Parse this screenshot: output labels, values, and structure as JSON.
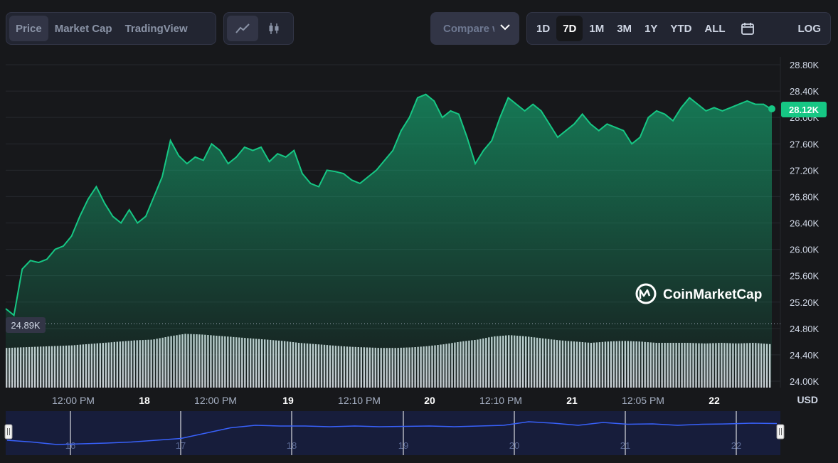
{
  "toolbar": {
    "tabs": [
      "Price",
      "Market Cap",
      "TradingView"
    ],
    "active_tab": "Price",
    "chart_types": [
      "line-chart-icon",
      "candlestick-icon"
    ],
    "compare_label": "Compare with",
    "timeframes": [
      "1D",
      "7D",
      "1M",
      "3M",
      "1Y",
      "YTD",
      "ALL"
    ],
    "active_timeframe": "7D",
    "calendar_icon": "calendar-icon",
    "log_label": "LOG"
  },
  "watermark": "CoinMarketCap",
  "currency": "USD",
  "colors": {
    "line": "#16c784",
    "badge": "#16c784",
    "background": "#17181b",
    "navigator_line": "#3861fb"
  },
  "chart_data": {
    "type": "area",
    "title": "",
    "ylabel": "",
    "y_ticks": [
      "28.80K",
      "28.40K",
      "28.00K",
      "27.60K",
      "27.20K",
      "26.80K",
      "26.40K",
      "26.00K",
      "25.60K",
      "25.20K",
      "24.80K",
      "24.40K",
      "24.00K"
    ],
    "ylim": [
      24000,
      28800
    ],
    "x_ticks": [
      "12:00 PM",
      "18",
      "12:00 PM",
      "19",
      "12:10 PM",
      "20",
      "12:10 PM",
      "21",
      "12:05 PM",
      "22"
    ],
    "current_price_label": "28.12K",
    "current_price": 28120,
    "start_price_label": "24.89K",
    "start_price": 24890,
    "price_series": [
      [
        0,
        25100
      ],
      [
        0.5,
        25000
      ],
      [
        1,
        25700
      ],
      [
        1.5,
        25830
      ],
      [
        2,
        25800
      ],
      [
        2.5,
        25850
      ],
      [
        3,
        26000
      ],
      [
        3.5,
        26050
      ],
      [
        4,
        26200
      ],
      [
        4.5,
        26500
      ],
      [
        5,
        26760
      ],
      [
        5.5,
        26950
      ],
      [
        6,
        26700
      ],
      [
        6.5,
        26500
      ],
      [
        7,
        26400
      ],
      [
        7.5,
        26600
      ],
      [
        8,
        26400
      ],
      [
        8.5,
        26500
      ],
      [
        9,
        26800
      ],
      [
        9.5,
        27100
      ],
      [
        10,
        27650
      ],
      [
        10.5,
        27420
      ],
      [
        11,
        27300
      ],
      [
        11.5,
        27400
      ],
      [
        12,
        27350
      ],
      [
        12.5,
        27600
      ],
      [
        13,
        27500
      ],
      [
        13.5,
        27300
      ],
      [
        14,
        27400
      ],
      [
        14.5,
        27550
      ],
      [
        15,
        27500
      ],
      [
        15.5,
        27550
      ],
      [
        16,
        27330
      ],
      [
        16.5,
        27450
      ],
      [
        17,
        27400
      ],
      [
        17.5,
        27500
      ],
      [
        18,
        27150
      ],
      [
        18.5,
        27000
      ],
      [
        19,
        26950
      ],
      [
        19.5,
        27200
      ],
      [
        20,
        27180
      ],
      [
        20.5,
        27150
      ],
      [
        21,
        27050
      ],
      [
        21.5,
        27000
      ],
      [
        22,
        27100
      ],
      [
        22.5,
        27200
      ],
      [
        23,
        27350
      ],
      [
        23.5,
        27500
      ],
      [
        24,
        27800
      ],
      [
        24.5,
        28000
      ],
      [
        25,
        28300
      ],
      [
        25.5,
        28350
      ],
      [
        26,
        28250
      ],
      [
        26.5,
        28000
      ],
      [
        27,
        28100
      ],
      [
        27.5,
        28050
      ],
      [
        28,
        27700
      ],
      [
        28.5,
        27300
      ],
      [
        29,
        27500
      ],
      [
        29.5,
        27650
      ],
      [
        30,
        28000
      ],
      [
        30.5,
        28300
      ],
      [
        31,
        28200
      ],
      [
        31.5,
        28100
      ],
      [
        32,
        28200
      ],
      [
        32.5,
        28100
      ],
      [
        33,
        27900
      ],
      [
        33.5,
        27700
      ],
      [
        34,
        27800
      ],
      [
        34.5,
        27900
      ],
      [
        35,
        28050
      ],
      [
        35.5,
        27900
      ],
      [
        36,
        27800
      ],
      [
        36.5,
        27900
      ],
      [
        37,
        27850
      ],
      [
        37.5,
        27800
      ],
      [
        38,
        27600
      ],
      [
        38.5,
        27700
      ],
      [
        39,
        28000
      ],
      [
        39.5,
        28100
      ],
      [
        40,
        28050
      ],
      [
        40.5,
        27950
      ],
      [
        41,
        28150
      ],
      [
        41.5,
        28300
      ],
      [
        42,
        28200
      ],
      [
        42.5,
        28100
      ],
      [
        43,
        28150
      ],
      [
        43.5,
        28100
      ],
      [
        44,
        28150
      ],
      [
        44.5,
        28200
      ],
      [
        45,
        28250
      ],
      [
        45.5,
        28200
      ],
      [
        46,
        28200
      ],
      [
        46.5,
        28120
      ]
    ],
    "volume_series": [
      0.62,
      0.63,
      0.64,
      0.65,
      0.66,
      0.68,
      0.7,
      0.72,
      0.74,
      0.75,
      0.8,
      0.84,
      0.83,
      0.81,
      0.79,
      0.77,
      0.75,
      0.73,
      0.7,
      0.68,
      0.66,
      0.64,
      0.63,
      0.62,
      0.62,
      0.63,
      0.65,
      0.68,
      0.72,
      0.75,
      0.8,
      0.82,
      0.8,
      0.77,
      0.74,
      0.72,
      0.7,
      0.72,
      0.73,
      0.72,
      0.7,
      0.7,
      0.7,
      0.69,
      0.7,
      0.69,
      0.7,
      0.68
    ],
    "navigator_ticks": [
      "16",
      "17",
      "18",
      "19",
      "20",
      "21",
      "22"
    ],
    "navigator_series": [
      0.3,
      0.25,
      0.18,
      0.2,
      0.22,
      0.25,
      0.3,
      0.35,
      0.5,
      0.65,
      0.72,
      0.7,
      0.7,
      0.68,
      0.7,
      0.68,
      0.69,
      0.7,
      0.68,
      0.7,
      0.72,
      0.82,
      0.78,
      0.72,
      0.8,
      0.75,
      0.76,
      0.72,
      0.75,
      0.76,
      0.78,
      0.77
    ]
  }
}
